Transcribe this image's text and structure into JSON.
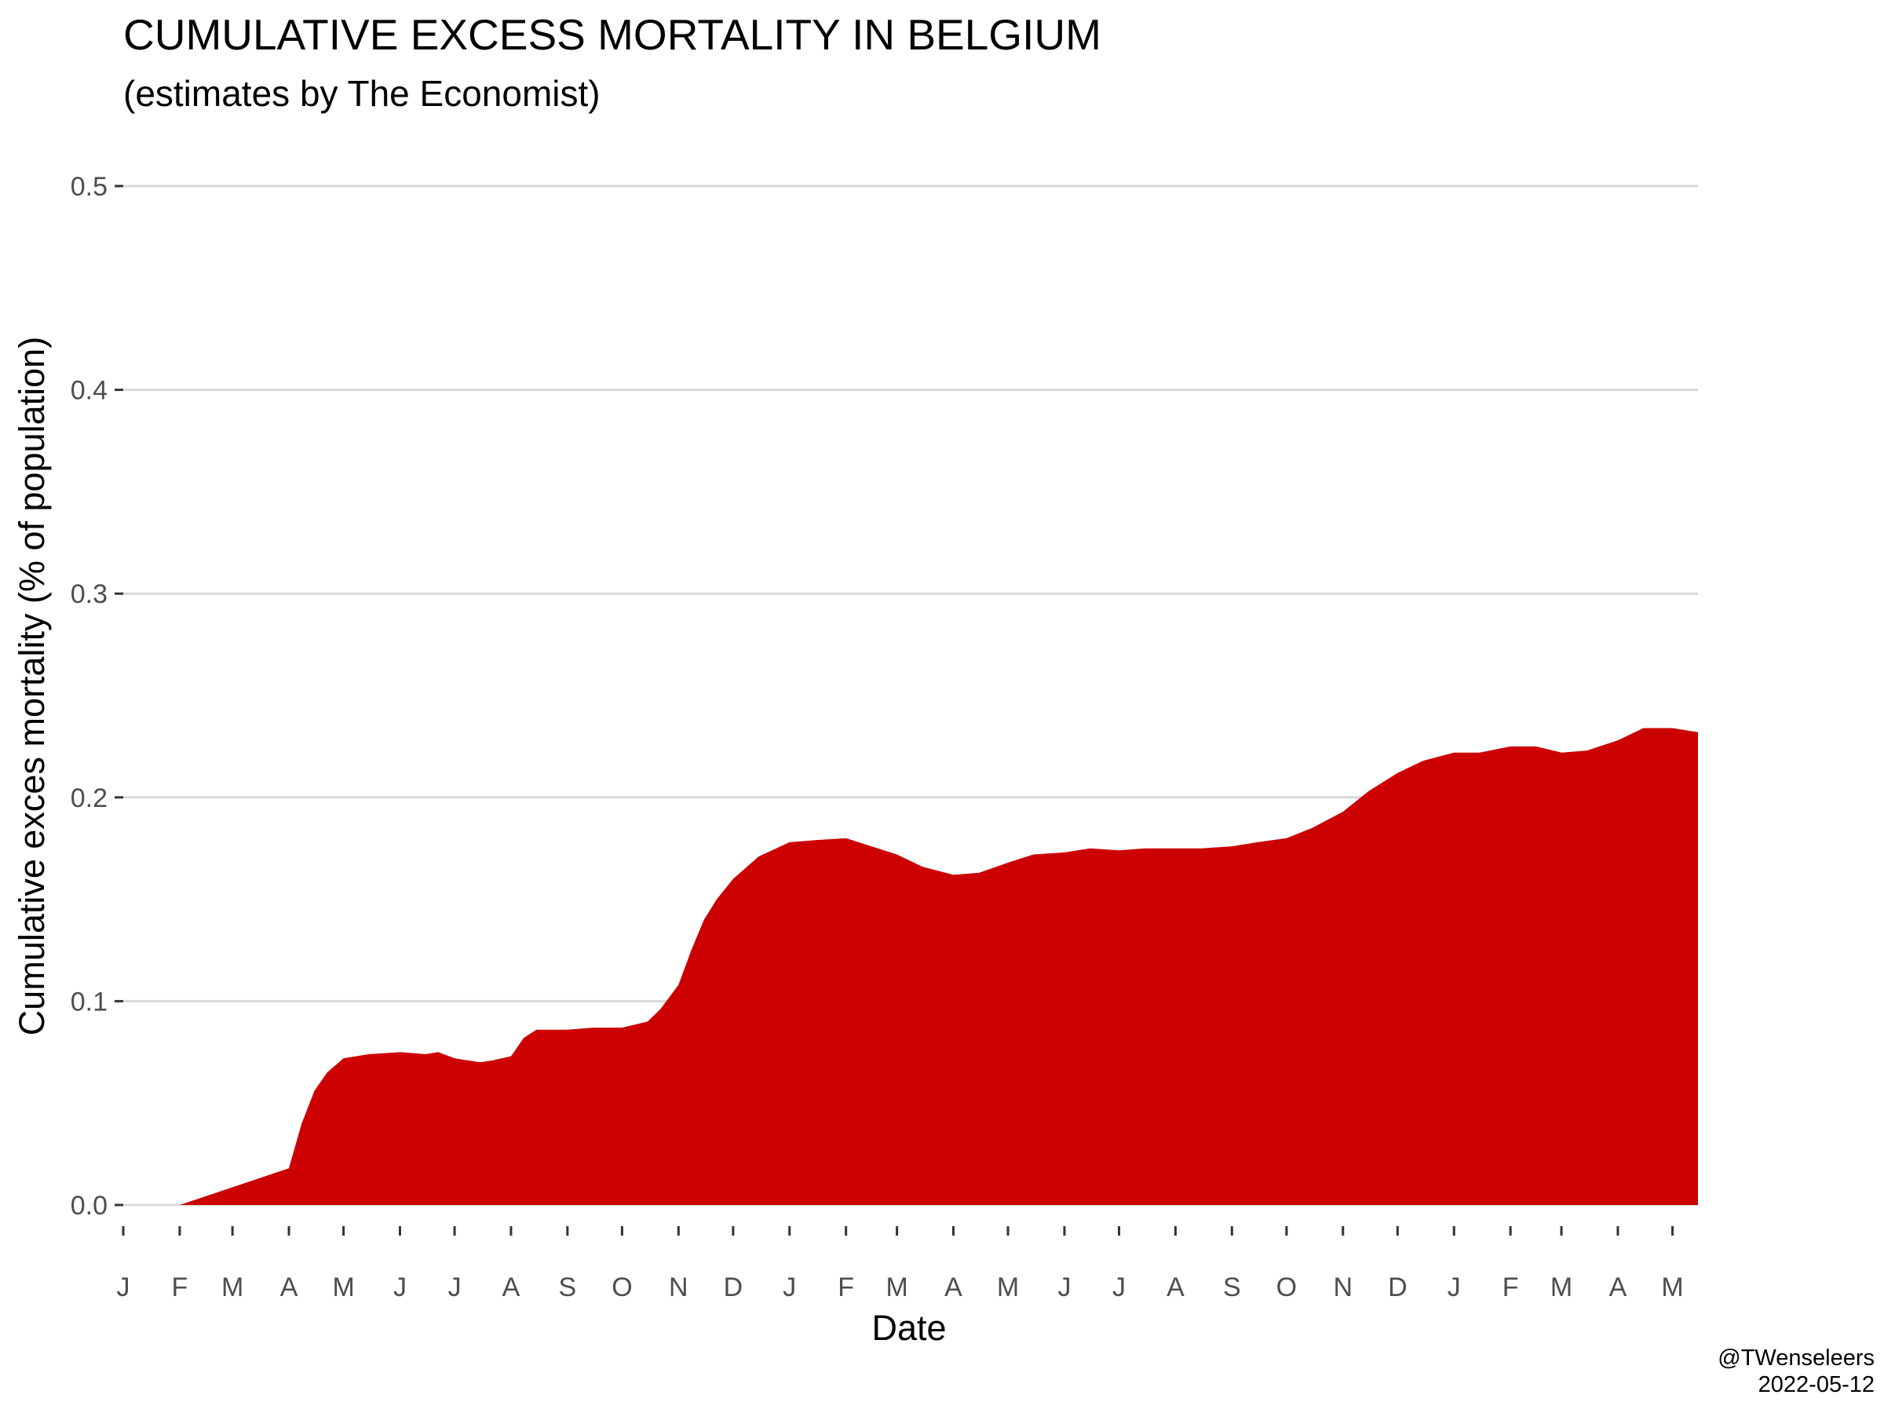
{
  "title": "CUMULATIVE EXCESS MORTALITY IN BELGIUM",
  "subtitle": "(estimates by The Economist)",
  "caption": {
    "author": "@TWenseleers",
    "date": "2022-05-12"
  },
  "colors": {
    "area": "#CC0000",
    "grid": "#D9D9D9",
    "tick_text": "#4d4d4d"
  },
  "chart_data": {
    "type": "area",
    "title": "CUMULATIVE EXCESS MORTALITY IN BELGIUM",
    "subtitle": "(estimates by The Economist)",
    "xlabel": "Date",
    "ylabel": "Cumulative exces mortality (% of population)",
    "ylim": [
      0,
      0.5
    ],
    "y_ticks": [
      0.0,
      0.1,
      0.2,
      0.3,
      0.4,
      0.5
    ],
    "y_tick_labels": [
      "0.0",
      "0.1",
      "0.2",
      "0.3",
      "0.4",
      "0.5"
    ],
    "x_range": [
      "2020-01-01",
      "2022-05-15"
    ],
    "x_ticks": [
      "2020-01-01",
      "2020-02-01",
      "2020-03-01",
      "2020-04-01",
      "2020-05-01",
      "2020-06-01",
      "2020-07-01",
      "2020-08-01",
      "2020-09-01",
      "2020-10-01",
      "2020-11-01",
      "2020-12-01",
      "2021-01-01",
      "2021-02-01",
      "2021-03-01",
      "2021-04-01",
      "2021-05-01",
      "2021-06-01",
      "2021-07-01",
      "2021-08-01",
      "2021-09-01",
      "2021-10-01",
      "2021-11-01",
      "2021-12-01",
      "2022-01-01",
      "2022-02-01",
      "2022-03-01",
      "2022-04-01",
      "2022-05-01"
    ],
    "x_tick_labels": [
      "J",
      "F",
      "M",
      "A",
      "M",
      "J",
      "J",
      "A",
      "S",
      "O",
      "N",
      "D",
      "J",
      "F",
      "M",
      "A",
      "M",
      "J",
      "J",
      "A",
      "S",
      "O",
      "N",
      "D",
      "J",
      "F",
      "M",
      "A",
      "M"
    ],
    "grid": "horizontal",
    "legend": "none",
    "series": [
      {
        "x": [
          "2020-01-01",
          "2020-02-01",
          "2020-04-01",
          "2020-04-08",
          "2020-04-15",
          "2020-04-22",
          "2020-05-01",
          "2020-05-15",
          "2020-06-01",
          "2020-06-15",
          "2020-06-22",
          "2020-07-01",
          "2020-07-15",
          "2020-07-22",
          "2020-08-01",
          "2020-08-08",
          "2020-08-15",
          "2020-09-01",
          "2020-09-15",
          "2020-10-01",
          "2020-10-15",
          "2020-10-22",
          "2020-11-01",
          "2020-11-08",
          "2020-11-15",
          "2020-11-22",
          "2020-12-01",
          "2020-12-15",
          "2021-01-01",
          "2021-01-15",
          "2021-02-01",
          "2021-02-15",
          "2021-03-01",
          "2021-03-15",
          "2021-04-01",
          "2021-04-15",
          "2021-05-01",
          "2021-05-15",
          "2021-06-01",
          "2021-06-15",
          "2021-07-01",
          "2021-07-15",
          "2021-08-01",
          "2021-08-15",
          "2021-09-01",
          "2021-09-15",
          "2021-10-01",
          "2021-10-15",
          "2021-11-01",
          "2021-11-15",
          "2021-12-01",
          "2021-12-15",
          "2022-01-01",
          "2022-01-15",
          "2022-02-01",
          "2022-02-15",
          "2022-03-01",
          "2022-03-15",
          "2022-04-01",
          "2022-04-15",
          "2022-05-01",
          "2022-05-15"
        ],
        "y": [
          0.0,
          0.0,
          0.018,
          0.04,
          0.056,
          0.065,
          0.072,
          0.074,
          0.075,
          0.074,
          0.075,
          0.072,
          0.07,
          0.071,
          0.073,
          0.082,
          0.086,
          0.086,
          0.087,
          0.087,
          0.09,
          0.096,
          0.108,
          0.125,
          0.14,
          0.15,
          0.16,
          0.171,
          0.178,
          0.179,
          0.18,
          0.176,
          0.172,
          0.166,
          0.162,
          0.163,
          0.168,
          0.172,
          0.173,
          0.175,
          0.174,
          0.175,
          0.175,
          0.175,
          0.176,
          0.178,
          0.18,
          0.185,
          0.193,
          0.203,
          0.212,
          0.218,
          0.222,
          0.222,
          0.225,
          0.225,
          0.222,
          0.223,
          0.228,
          0.234,
          0.234,
          0.232
        ]
      }
    ]
  },
  "axes_text": {
    "xlabel": "Date",
    "ylabel": "Cumulative exces mortality (% of population)"
  }
}
